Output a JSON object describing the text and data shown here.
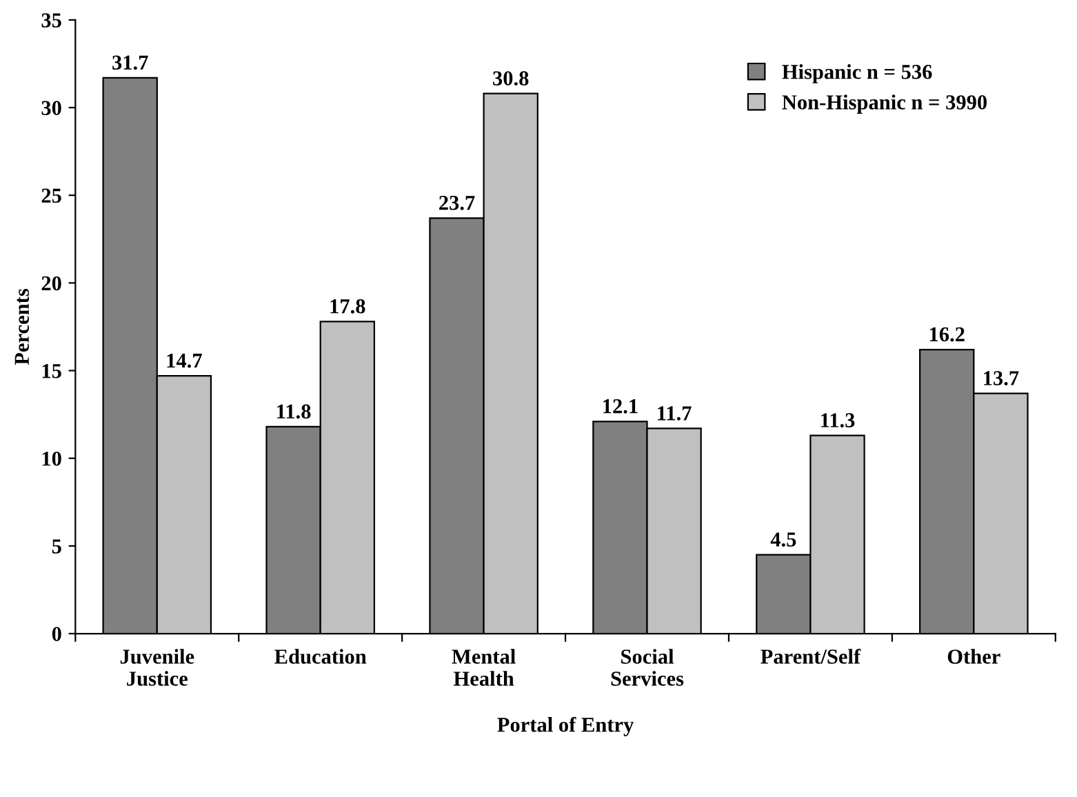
{
  "chart_data": {
    "type": "bar",
    "xlabel": "Portal of Entry",
    "ylabel": "Percents",
    "categories": [
      "Juvenile\nJustice",
      "Education",
      "Mental\nHealth",
      "Social\nServices",
      "Parent/Self",
      "Other"
    ],
    "series": [
      {
        "name": "Hispanic n = 536",
        "color": "#808080",
        "values": [
          31.7,
          11.8,
          23.7,
          12.1,
          4.5,
          16.2
        ]
      },
      {
        "name": "Non-Hispanic n = 3990",
        "color": "#c0c0c0",
        "values": [
          14.7,
          17.8,
          30.8,
          11.7,
          11.3,
          13.7
        ]
      }
    ],
    "ylim": [
      0,
      35
    ],
    "yticks": [
      0,
      5,
      10,
      15,
      20,
      25,
      30,
      35
    ],
    "grid": false,
    "legend": "top right",
    "data_labels": true
  }
}
